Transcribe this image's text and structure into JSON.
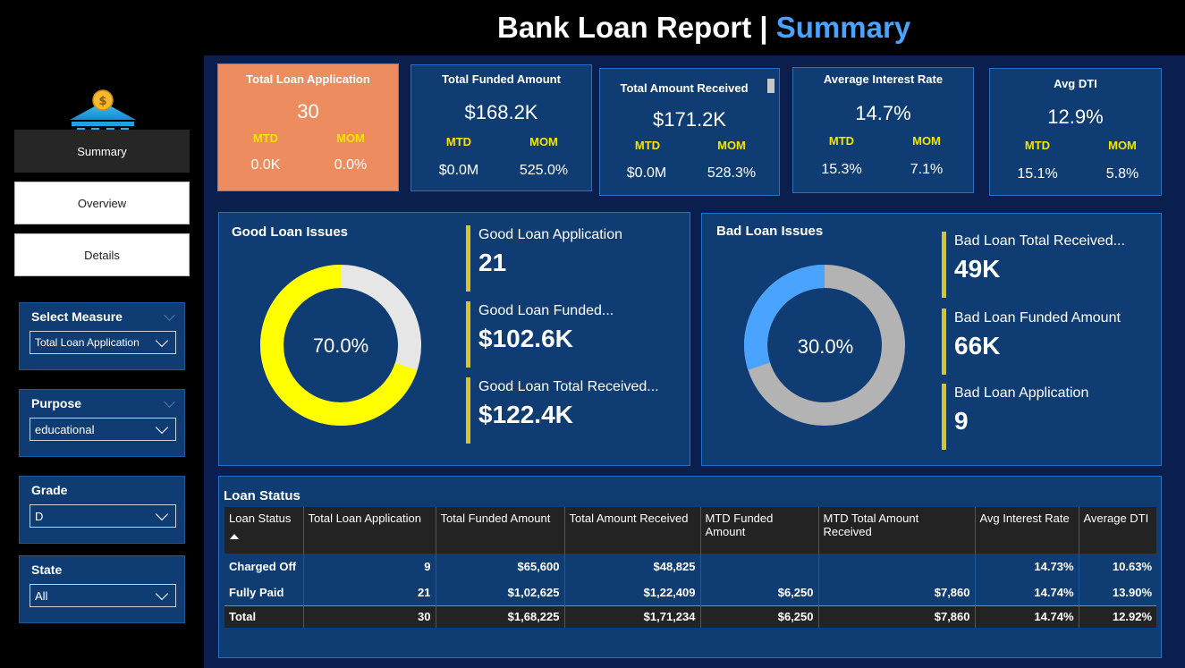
{
  "header": {
    "title_main": "Bank Loan Report | ",
    "title_accent": "Summary"
  },
  "sidebar": {
    "nav": [
      {
        "label": "Summary",
        "active": true
      },
      {
        "label": "Overview",
        "active": false
      },
      {
        "label": "Details",
        "active": false
      }
    ],
    "slicers": [
      {
        "title": "Select Measure",
        "value": "Total Loan Application"
      },
      {
        "title": "Purpose",
        "value": "educational"
      },
      {
        "title": "Grade",
        "value": "D"
      },
      {
        "title": "State",
        "value": "All"
      }
    ]
  },
  "kpis": [
    {
      "title": "Total Loan Application",
      "value": "30",
      "mtd_label": "MTD",
      "mom_label": "MOM",
      "mtd": "0.0K",
      "mom": "0.0%"
    },
    {
      "title": "Total Funded Amount",
      "value": "$168.2K",
      "mtd_label": "MTD",
      "mom_label": "MOM",
      "mtd": "$0.0M",
      "mom": "525.0%"
    },
    {
      "title": "Total Amount Received",
      "value": "$171.2K",
      "mtd_label": "MTD",
      "mom_label": "MOM",
      "mtd": "$0.0M",
      "mom": "528.3%"
    },
    {
      "title": "Average Interest Rate",
      "value": "14.7%",
      "mtd_label": "MTD",
      "mom_label": "MOM",
      "mtd": "15.3%",
      "mom": "7.1%"
    },
    {
      "title": "Avg DTI",
      "value": "12.9%",
      "mtd_label": "MTD",
      "mom_label": "MOM",
      "mtd": "15.1%",
      "mom": "5.8%"
    }
  ],
  "good_loan": {
    "title": "Good Loan Issues",
    "percent": 70.0,
    "percent_label": "70.0%",
    "colors": {
      "share": "#ffff00",
      "rest": "#e6e6e6"
    },
    "stats": [
      {
        "label": "Good Loan Application",
        "value": "21"
      },
      {
        "label": "Good Loan Funded...",
        "value": "$102.6K"
      },
      {
        "label": "Good Loan Total Received...",
        "value": "$122.4K"
      }
    ]
  },
  "bad_loan": {
    "title": "Bad Loan Issues",
    "percent": 30.0,
    "percent_label": "30.0%",
    "colors": {
      "share": "#4aa3ff",
      "rest": "#b3b3b3"
    },
    "stats": [
      {
        "label": "Bad Loan Total Received...",
        "value": "49K"
      },
      {
        "label": "Bad Loan Funded Amount",
        "value": "66K"
      },
      {
        "label": "Bad Loan Application",
        "value": "9"
      }
    ]
  },
  "loan_status": {
    "title": "Loan Status",
    "columns": [
      "Loan Status",
      "Total Loan Application",
      "Total Funded Amount",
      "Total Amount Received",
      "MTD Funded Amount",
      "MTD Total Amount Received",
      "Avg Interest Rate",
      "Average DTI"
    ],
    "rows": [
      [
        "Charged Off",
        "9",
        "$65,600",
        "$48,825",
        "",
        "",
        "14.73%",
        "10.63%"
      ],
      [
        "Fully Paid",
        "21",
        "$1,02,625",
        "$1,22,409",
        "$6,250",
        "$7,860",
        "14.74%",
        "13.90%"
      ]
    ],
    "total": [
      "Total",
      "30",
      "$1,68,225",
      "$1,71,234",
      "$6,250",
      "$7,860",
      "14.74%",
      "12.92%"
    ]
  }
}
